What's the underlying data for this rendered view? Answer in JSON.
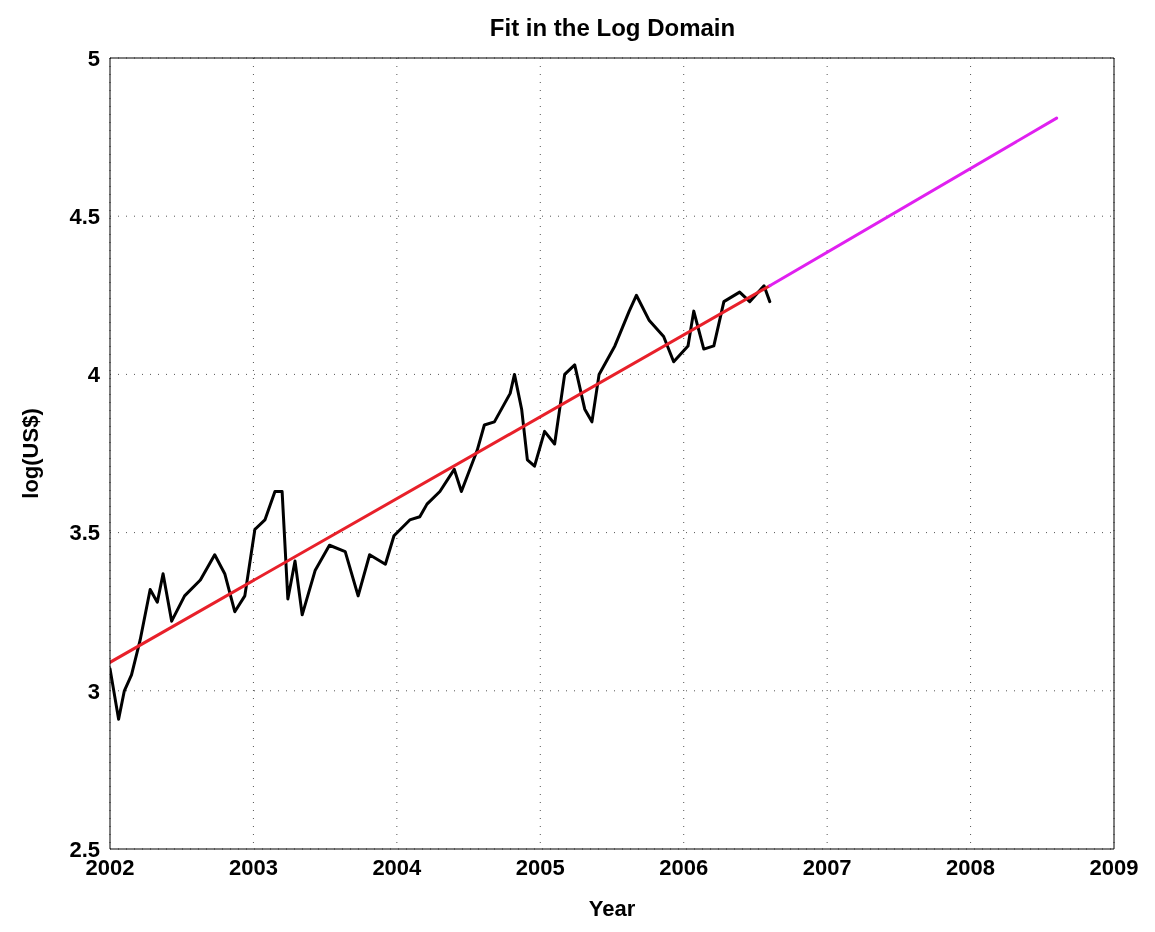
{
  "chart_data": {
    "type": "line",
    "title": "Fit in the Log Domain",
    "xlabel": "Year",
    "ylabel": "log(US$)",
    "xlim": [
      2002,
      2009
    ],
    "xticks": [
      2002,
      2003,
      2004,
      2005,
      2006,
      2007,
      2008,
      2009
    ],
    "ylim": [
      2.5,
      5
    ],
    "yticks": [
      2.5,
      3,
      3.5,
      4,
      4.5,
      5
    ],
    "grid": true,
    "marker": "none",
    "line_style": "solid",
    "series": [
      {
        "color": "#000000",
        "x": [
          2002.0,
          2002.06,
          2002.1,
          2002.15,
          2002.21,
          2002.28,
          2002.33,
          2002.37,
          2002.43,
          2002.52,
          2002.63,
          2002.73,
          2002.8,
          2002.87,
          2002.94,
          2003.01,
          2003.08,
          2003.15,
          2003.2,
          2003.24,
          2003.29,
          2003.34,
          2003.43,
          2003.53,
          2003.64,
          2003.73,
          2003.81,
          2003.92,
          2003.98,
          2004.09,
          2004.16,
          2004.21,
          2004.3,
          2004.4,
          2004.45,
          2004.56,
          2004.61,
          2004.68,
          2004.79,
          2004.82,
          2004.87,
          2004.91,
          2004.96,
          2005.03,
          2005.1,
          2005.17,
          2005.24,
          2005.31,
          2005.36,
          2005.41,
          2005.52,
          2005.62,
          2005.67,
          2005.76,
          2005.86,
          2005.93,
          2006.03,
          2006.07,
          2006.14,
          2006.21,
          2006.28,
          2006.39,
          2006.46,
          2006.56,
          2006.6
        ],
        "values": [
          3.07,
          2.91,
          3.0,
          3.05,
          3.16,
          3.32,
          3.28,
          3.37,
          3.22,
          3.3,
          3.35,
          3.43,
          3.37,
          3.25,
          3.3,
          3.51,
          3.54,
          3.63,
          3.63,
          3.29,
          3.41,
          3.24,
          3.38,
          3.46,
          3.44,
          3.3,
          3.43,
          3.4,
          3.49,
          3.54,
          3.55,
          3.59,
          3.63,
          3.7,
          3.63,
          3.76,
          3.84,
          3.85,
          3.94,
          4.0,
          3.89,
          3.73,
          3.71,
          3.82,
          3.78,
          4.0,
          4.03,
          3.89,
          3.85,
          4.0,
          4.09,
          4.2,
          4.25,
          4.17,
          4.12,
          4.04,
          4.09,
          4.2,
          4.08,
          4.09,
          4.23,
          4.26,
          4.23,
          4.28,
          4.23
        ]
      },
      {
        "type": "line",
        "color": "#e8202a",
        "x": [
          2002,
          2006.6
        ],
        "values": [
          3.09,
          4.28
        ]
      },
      {
        "type": "line",
        "color": "#e020f0",
        "x": [
          2006.6,
          2008.6
        ],
        "values": [
          4.28,
          4.81
        ]
      }
    ]
  }
}
